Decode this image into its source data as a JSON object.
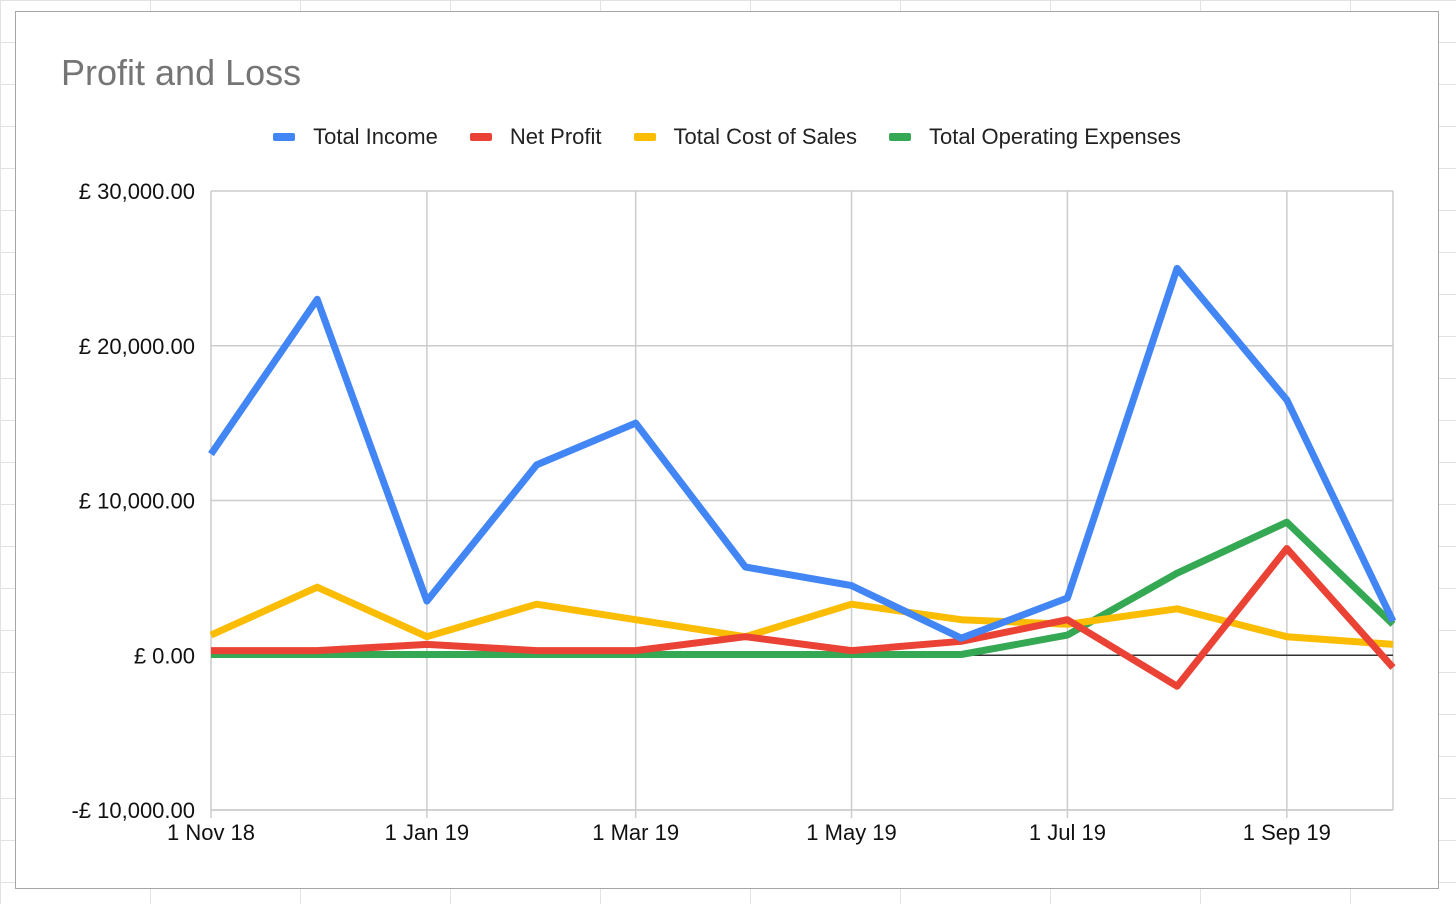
{
  "colors": {
    "income": "#4285F4",
    "net": "#EA4335",
    "cost": "#FBBC04",
    "opex": "#34A853",
    "grid": "#cccccc",
    "zero_line": "#333333"
  },
  "chart_data": {
    "type": "line",
    "title": "Profit and Loss",
    "xlabel": "",
    "ylabel": "",
    "grid": true,
    "legend_position": "top",
    "ylim": [
      -10000,
      30000
    ],
    "y_ticks": [
      {
        "value": 30000,
        "label": "£ 30,000.00"
      },
      {
        "value": 20000,
        "label": "£ 20,000.00"
      },
      {
        "value": 10000,
        "label": "£ 10,000.00"
      },
      {
        "value": 0,
        "label": "£ 0.00"
      },
      {
        "value": -10000,
        "label": "-£ 10,000.00"
      }
    ],
    "x_range": [
      "2018-11-01",
      "2019-10-01"
    ],
    "x_ticks": [
      {
        "date": "2018-11-01",
        "label": "1 Nov 18"
      },
      {
        "date": "2019-01-01",
        "label": "1 Jan 19"
      },
      {
        "date": "2019-03-01",
        "label": "1 Mar 19"
      },
      {
        "date": "2019-05-01",
        "label": "1 May 19"
      },
      {
        "date": "2019-07-01",
        "label": "1 Jul 19"
      },
      {
        "date": "2019-09-01",
        "label": "1 Sep 19"
      }
    ],
    "x": [
      "2018-11-01",
      "2018-12-01",
      "2019-01-01",
      "2019-02-01",
      "2019-03-01",
      "2019-04-01",
      "2019-05-01",
      "2019-06-01",
      "2019-07-01",
      "2019-08-01",
      "2019-09-01",
      "2019-10-01"
    ],
    "series": [
      {
        "name": "Total Income",
        "color_key": "income",
        "values": [
          13000,
          23000,
          3500,
          12300,
          15000,
          5700,
          4500,
          1100,
          3700,
          25000,
          16500,
          2200
        ]
      },
      {
        "name": "Net Profit",
        "color_key": "net",
        "values": [
          300,
          300,
          700,
          300,
          300,
          1200,
          300,
          900,
          2300,
          -2000,
          6900,
          -800
        ]
      },
      {
        "name": "Total Cost of Sales",
        "color_key": "cost",
        "values": [
          1300,
          4400,
          1200,
          3300,
          2300,
          1200,
          3300,
          2300,
          2000,
          3000,
          1200,
          700
        ]
      },
      {
        "name": "Total Operating Expenses",
        "color_key": "opex",
        "values": [
          50,
          50,
          50,
          50,
          50,
          50,
          50,
          50,
          1300,
          5300,
          8600,
          2000
        ]
      }
    ]
  }
}
